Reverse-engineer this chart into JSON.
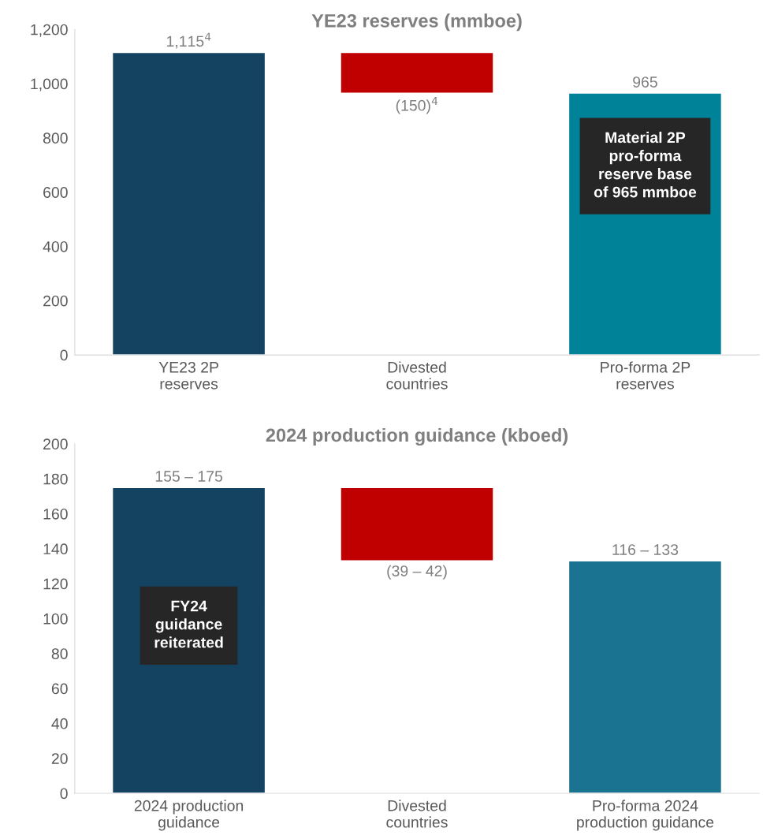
{
  "chart_data": [
    {
      "type": "bar",
      "title": "YE23 reserves (mmboe)",
      "categories": [
        "YE23 2P\nreserves",
        "Divested\ncountries",
        "Pro-forma 2P\nreserves"
      ],
      "values": [
        1115,
        150,
        965
      ],
      "base": [
        0,
        965,
        0
      ],
      "colors": [
        "#134360",
        "#c00000",
        "#008299"
      ],
      "value_labels": [
        "1,115$^{4}$",
        "(150)$^{4}$",
        "965"
      ],
      "ylim": [
        0,
        1200
      ],
      "yticks": [
        0,
        200,
        400,
        600,
        800,
        {
          "value": 1000,
          "label": "1,000"
        },
        {
          "value": 1200,
          "label": "1,200"
        }
      ],
      "annotations": [
        "Material 2P\npro-forma\nreserve base\nof 965 mmboe"
      ],
      "grid": false
    },
    {
      "type": "bar",
      "title": "2024 production guidance (kboed)",
      "categories": [
        "2024 production\nguidance",
        "Divested\ncountries",
        "Pro-forma 2024\nproduction guidance"
      ],
      "values": [
        175,
        42,
        133
      ],
      "base": [
        0,
        133,
        0
      ],
      "colors": [
        "#134360",
        "#c00000",
        "#1a7390"
      ],
      "ylim": [
        0,
        200
      ],
      "yticks": [
        0,
        20,
        40,
        60,
        80,
        100,
        120,
        140,
        160,
        180,
        200
      ],
      "annotations": [
        "155 – 175",
        "(39 – 42)",
        "116 – 133",
        "FY24\nguidance\nreiterated"
      ],
      "grid": false
    }
  ]
}
